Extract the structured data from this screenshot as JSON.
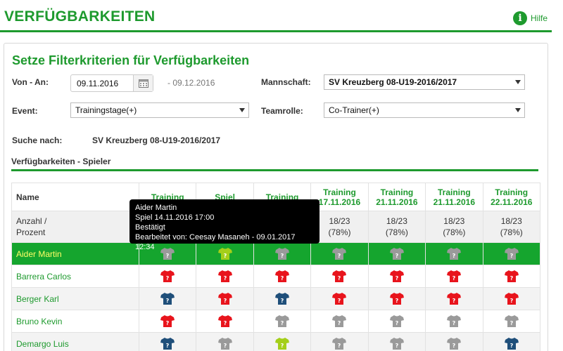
{
  "page": {
    "title": "VERFÜGBARKEITEN",
    "help_label": "Hilfe"
  },
  "filter": {
    "title": "Setze Filterkriterien für Verfügbarkeiten",
    "von_an_label": "Von - An:",
    "from_date": "09.11.2016",
    "to_date": "- 09.12.2016",
    "mannschaft_label": "Mannschaft:",
    "mannschaft_value": "SV Kreuzberg 08-U19-2016/2017",
    "event_label": "Event:",
    "event_value": "Trainingstage(+)",
    "teamrolle_label": "Teamrolle:",
    "teamrolle_value": "Co-Trainer(+)",
    "suche_label": "Suche nach:",
    "suche_value": "SV Kreuzberg 08-U19-2016/2017"
  },
  "section_title": "Verfügbarkeiten - Spieler",
  "table": {
    "name_header": "Name",
    "count_label_1": "Anzahl /",
    "count_label_2": "Prozent",
    "events": [
      {
        "type": "Training",
        "date": "",
        "count": "",
        "percent": ""
      },
      {
        "type": "Spiel",
        "date": "",
        "count": "",
        "percent": ""
      },
      {
        "type": "Training",
        "date": "",
        "count": "",
        "percent": ""
      },
      {
        "type": "Training",
        "date": "17.11.2016",
        "count": "18/23",
        "percent": "(78%)"
      },
      {
        "type": "Training",
        "date": "21.11.2016",
        "count": "18/23",
        "percent": "(78%)"
      },
      {
        "type": "Training",
        "date": "21.11.2016",
        "count": "18/23",
        "percent": "(78%)"
      },
      {
        "type": "Training",
        "date": "22.11.2016",
        "count": "18/23",
        "percent": "(78%)"
      }
    ],
    "players": [
      {
        "name": "Aider Martin",
        "status": [
          "gray",
          "lime",
          "gray",
          "gray",
          "gray",
          "gray",
          "gray"
        ]
      },
      {
        "name": "Barrera Carlos",
        "status": [
          "red",
          "red",
          "red",
          "red",
          "red",
          "red",
          "red"
        ]
      },
      {
        "name": "Berger Karl",
        "status": [
          "navy",
          "red",
          "navy",
          "red",
          "red",
          "red",
          "red"
        ]
      },
      {
        "name": "Bruno Kevin",
        "status": [
          "red",
          "red",
          "gray",
          "gray",
          "gray",
          "gray",
          "gray"
        ]
      },
      {
        "name": "Demargo Luis",
        "status": [
          "navy",
          "gray",
          "lime",
          "gray",
          "gray",
          "gray",
          "navy"
        ]
      }
    ]
  },
  "tooltip": {
    "line1": "Aider Martin",
    "line2": "Spiel 14.11.2016 17:00",
    "line3": "Bestätigt",
    "line4": "Bearbeitet von: Ceesay Masaneh - 09.01.2017 12:34"
  },
  "colors": {
    "accent": "#1e9a2e",
    "selected_row": "#15a52e",
    "shirt_red": "#e8141c",
    "shirt_gray": "#9a9a9a",
    "shirt_navy": "#1f4f7a",
    "shirt_lime": "#a4cf1a"
  }
}
